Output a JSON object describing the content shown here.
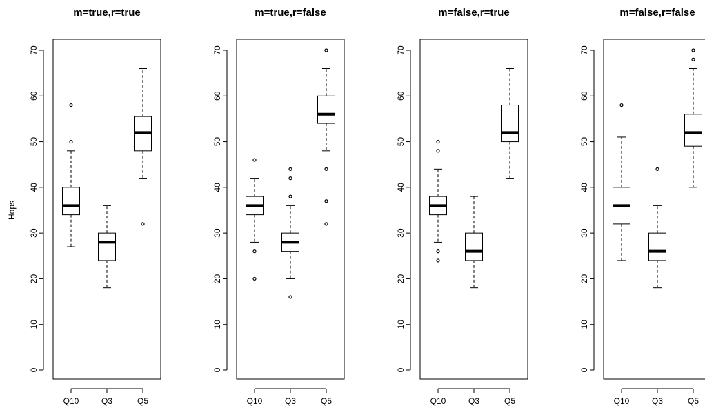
{
  "y_axis_label": "Hops",
  "chart_data": [
    {
      "type": "boxplot",
      "title": "m=true,r=true",
      "categories": [
        "Q10",
        "Q3",
        "Q5"
      ],
      "ylim": [
        0,
        70
      ],
      "yticks": [
        0,
        10,
        20,
        30,
        40,
        50,
        60,
        70
      ],
      "boxes": [
        {
          "category": "Q10",
          "whisker_low": 27,
          "q1": 34,
          "median": 36,
          "q3": 40,
          "whisker_high": 48,
          "outliers": [
            50,
            58
          ]
        },
        {
          "category": "Q3",
          "whisker_low": 18,
          "q1": 24,
          "median": 28,
          "q3": 30,
          "whisker_high": 36,
          "outliers": []
        },
        {
          "category": "Q5",
          "whisker_low": 42,
          "q1": 48,
          "median": 52,
          "q3": 55.5,
          "whisker_high": 66,
          "outliers": [
            32
          ]
        }
      ]
    },
    {
      "type": "boxplot",
      "title": "m=true,r=false",
      "categories": [
        "Q10",
        "Q3",
        "Q5"
      ],
      "ylim": [
        0,
        70
      ],
      "yticks": [
        0,
        10,
        20,
        30,
        40,
        50,
        60,
        70
      ],
      "boxes": [
        {
          "category": "Q10",
          "whisker_low": 28,
          "q1": 34,
          "median": 36,
          "q3": 38,
          "whisker_high": 42,
          "outliers": [
            46,
            26,
            20
          ]
        },
        {
          "category": "Q3",
          "whisker_low": 20,
          "q1": 26,
          "median": 28,
          "q3": 30,
          "whisker_high": 36,
          "outliers": [
            44,
            42,
            38,
            16
          ]
        },
        {
          "category": "Q5",
          "whisker_low": 48,
          "q1": 54,
          "median": 56,
          "q3": 60,
          "whisker_high": 66,
          "outliers": [
            70,
            44,
            37,
            32
          ]
        }
      ]
    },
    {
      "type": "boxplot",
      "title": "m=false,r=true",
      "categories": [
        "Q10",
        "Q3",
        "Q5"
      ],
      "ylim": [
        0,
        70
      ],
      "yticks": [
        0,
        10,
        20,
        30,
        40,
        50,
        60,
        70
      ],
      "boxes": [
        {
          "category": "Q10",
          "whisker_low": 28,
          "q1": 34,
          "median": 36,
          "q3": 38,
          "whisker_high": 44,
          "outliers": [
            50,
            48,
            26,
            24
          ]
        },
        {
          "category": "Q3",
          "whisker_low": 18,
          "q1": 24,
          "median": 26,
          "q3": 30,
          "whisker_high": 38,
          "outliers": []
        },
        {
          "category": "Q5",
          "whisker_low": 42,
          "q1": 50,
          "median": 52,
          "q3": 58,
          "whisker_high": 66,
          "outliers": []
        }
      ]
    },
    {
      "type": "boxplot",
      "title": "m=false,r=false",
      "categories": [
        "Q10",
        "Q3",
        "Q5"
      ],
      "ylim": [
        0,
        70
      ],
      "yticks": [
        0,
        10,
        20,
        30,
        40,
        50,
        60,
        70
      ],
      "boxes": [
        {
          "category": "Q10",
          "whisker_low": 24,
          "q1": 32,
          "median": 36,
          "q3": 40,
          "whisker_high": 51,
          "outliers": [
            58
          ]
        },
        {
          "category": "Q3",
          "whisker_low": 18,
          "q1": 24,
          "median": 26,
          "q3": 30,
          "whisker_high": 36,
          "outliers": [
            44
          ]
        },
        {
          "category": "Q5",
          "whisker_low": 40,
          "q1": 49,
          "median": 52,
          "q3": 56,
          "whisker_high": 66,
          "outliers": [
            70,
            68
          ]
        }
      ]
    }
  ]
}
